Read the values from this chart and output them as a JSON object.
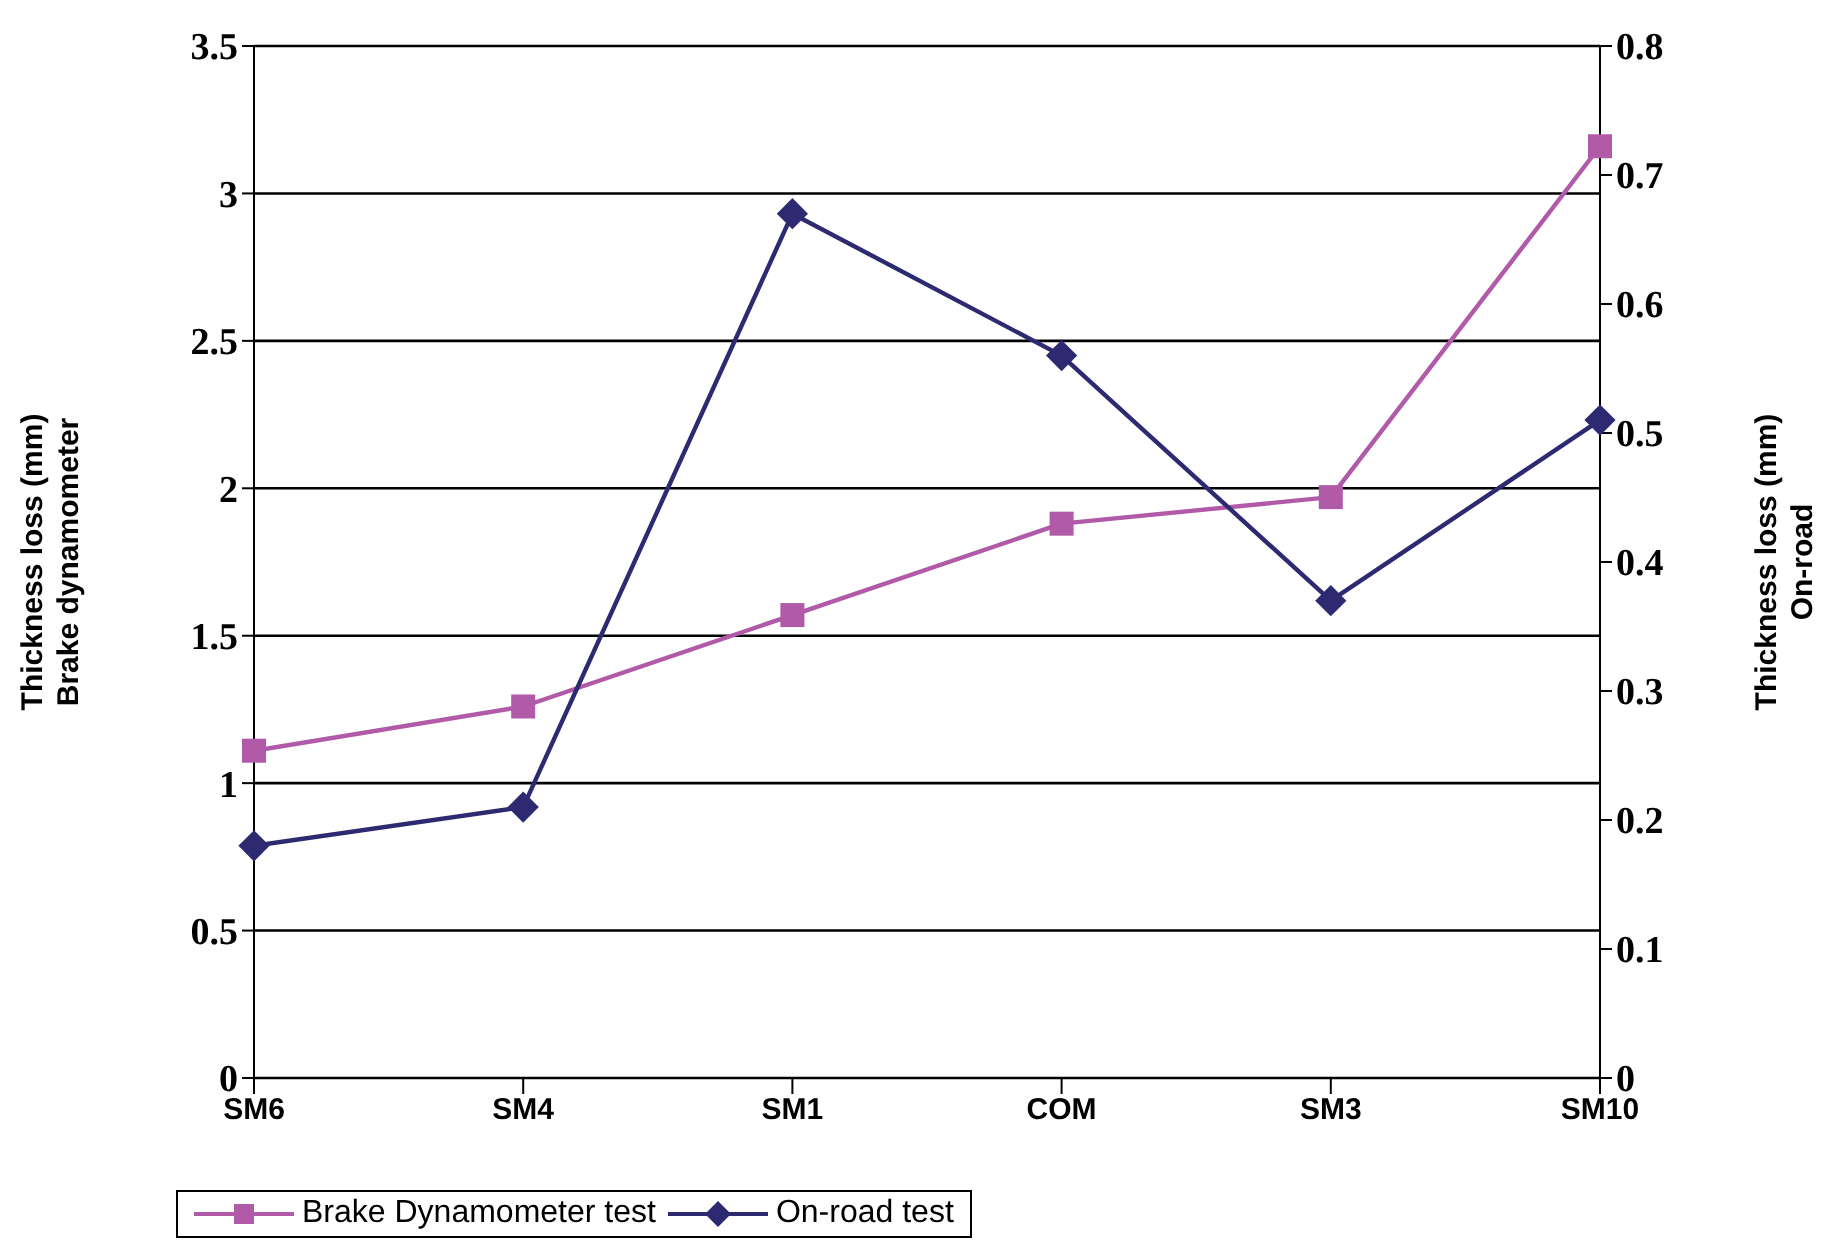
{
  "chart_data": {
    "type": "line",
    "ylabel": "Thickness loss (mm)\nBrake dynamometer",
    "y2label": "Thickness loss (mm)\nOn-road",
    "categories": [
      "SM6",
      "SM4",
      "SM1",
      "COM",
      "SM3",
      "SM10"
    ],
    "series": [
      {
        "name": "Brake Dynamometer test",
        "color": "#b05aa8",
        "marker": "square",
        "values": [
          1.11,
          1.26,
          1.57,
          1.88,
          1.97,
          3.16
        ]
      },
      {
        "name": "On-road test",
        "color": "#2e2a72",
        "marker": "diamond",
        "axis": "y2",
        "values": [
          0.18,
          0.21,
          0.67,
          0.56,
          0.37,
          0.51
        ]
      }
    ],
    "ylim": [
      0,
      3.5
    ],
    "yticks": [
      0,
      0.5,
      1,
      1.5,
      2,
      2.5,
      3,
      3.5
    ],
    "y2lim": [
      0,
      0.8
    ],
    "y2ticks": [
      0,
      0.1,
      0.2,
      0.3,
      0.4,
      0.5,
      0.6,
      0.7,
      0.8
    ],
    "grid": "y",
    "legend": "bottom",
    "line_style": "solid"
  }
}
